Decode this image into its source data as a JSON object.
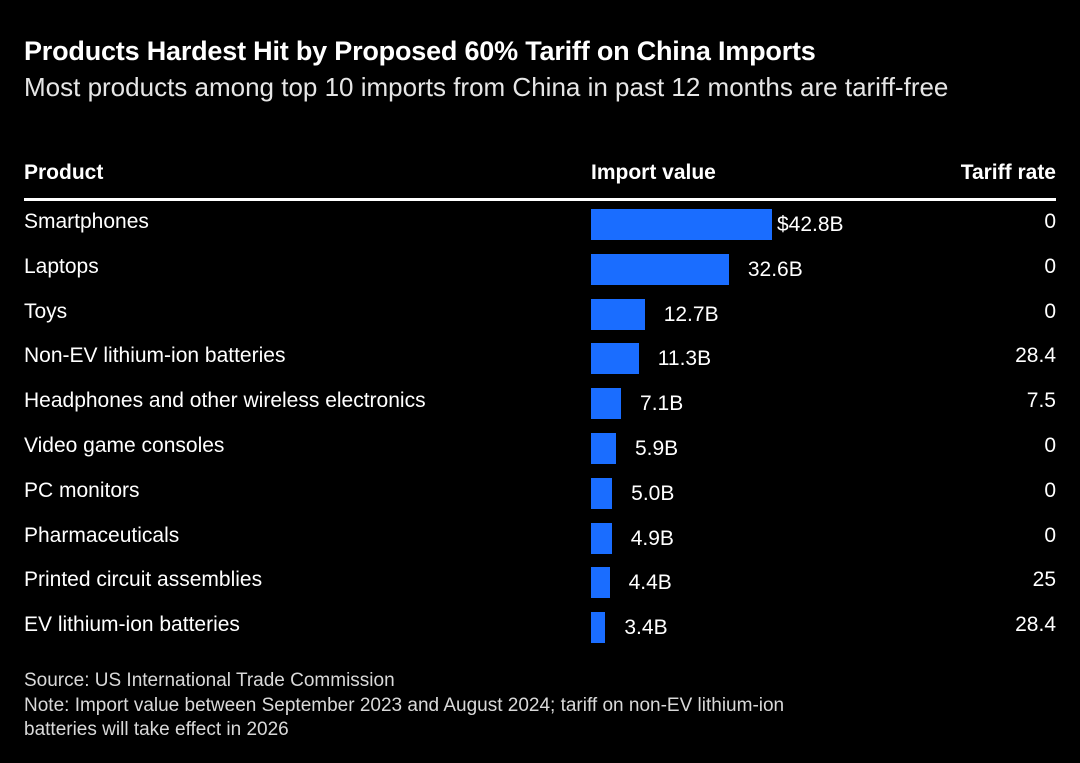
{
  "header": {
    "title": "Products Hardest Hit by Proposed 60% Tariff on China Imports",
    "subtitle": "Most products among top 10 imports from China in past 12 months are tariff-free"
  },
  "columns": {
    "product": "Product",
    "import_value": "Import value",
    "tariff_rate": "Tariff rate"
  },
  "colors": {
    "bar": "#1a6dff",
    "background": "#000000",
    "text": "#ffffff"
  },
  "chart_data": {
    "type": "bar",
    "orientation": "horizontal",
    "categories": [
      "Smartphones",
      "Laptops",
      "Toys",
      "Non-EV lithium-ion batteries",
      "Headphones and other wireless electronics",
      "Video game consoles",
      "PC monitors",
      "Pharmaceuticals",
      "Printed circuit assemblies",
      "EV lithium-ion batteries"
    ],
    "values": [
      42.8,
      32.6,
      12.7,
      11.3,
      7.1,
      5.9,
      5.0,
      4.9,
      4.4,
      3.4
    ],
    "value_labels": [
      "$42.8B",
      "32.6B",
      "12.7B",
      "11.3B",
      "7.1B",
      "5.9B",
      "5.0B",
      "4.9B",
      "4.4B",
      "3.4B"
    ],
    "tariff_rates": [
      "0",
      "0",
      "0",
      "28.4",
      "7.5",
      "0",
      "0",
      "0",
      "25",
      "28.4"
    ],
    "grid": false
  },
  "footer": {
    "source": "Source: US International Trade Commission",
    "note": "Note: Import value between September 2023 and August 2024; tariff on non-EV lithium-ion batteries will take effect in 2026"
  }
}
